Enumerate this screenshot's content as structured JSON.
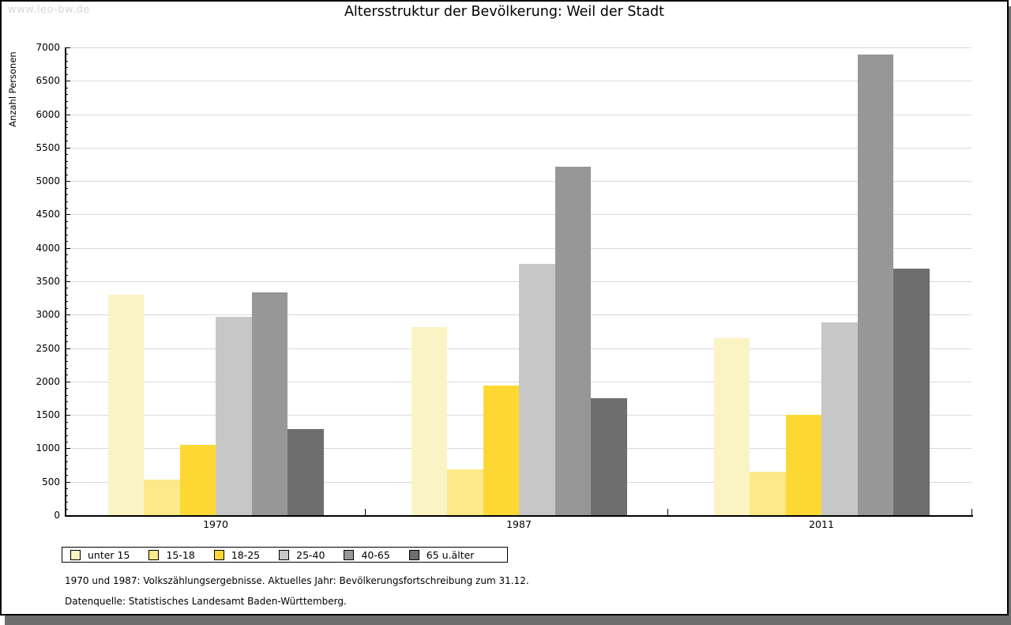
{
  "watermark": "www.leo-bw.de",
  "chart_data": {
    "type": "bar",
    "title": "Altersstruktur der Bevölkerung: Weil der Stadt",
    "xlabel": "",
    "ylabel": "Anzahl Personen",
    "ylim": [
      0,
      7000
    ],
    "ytick_step": 500,
    "minor_tick_step": 100,
    "grid": true,
    "legend_position": "bottom-left",
    "categories": [
      "1970",
      "1987",
      "2011"
    ],
    "series": [
      {
        "name": "unter 15",
        "color": "#FAF3C3",
        "values": [
          3300,
          2810,
          2650
        ]
      },
      {
        "name": "15-18",
        "color": "#FCE98A",
        "values": [
          530,
          680,
          650
        ]
      },
      {
        "name": "18-25",
        "color": "#FDD832",
        "values": [
          1050,
          1940,
          1500
        ]
      },
      {
        "name": "25-40",
        "color": "#C7C7C7",
        "values": [
          2970,
          3760,
          2890
        ]
      },
      {
        "name": "40-65",
        "color": "#979797",
        "values": [
          3330,
          5210,
          6890
        ]
      },
      {
        "name": "65 u.älter",
        "color": "#6E6E6E",
        "values": [
          1290,
          1750,
          3690
        ]
      }
    ]
  },
  "footnotes": [
    "1970 und 1987: Volkszählungsergebnisse. Aktuelles Jahr: Bevölkerungsfortschreibung zum 31.12.",
    "Datenquelle: Statistisches Landesamt Baden-Württemberg."
  ]
}
